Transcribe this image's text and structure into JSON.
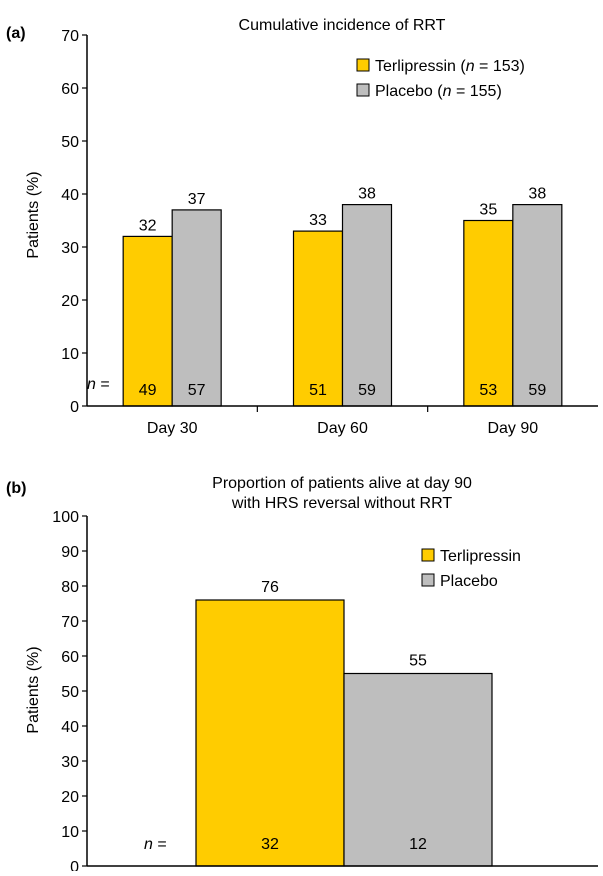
{
  "chart_data": [
    {
      "type": "bar",
      "panel_label": "(a)",
      "title": "Cumulative incidence of RRT",
      "ylabel": "Patients (%)",
      "ylim": [
        0,
        70
      ],
      "yticks": [
        0,
        10,
        20,
        30,
        40,
        50,
        60,
        70
      ],
      "categories": [
        "Day 30",
        "Day 60",
        "Day 90"
      ],
      "n_prefix": "n =",
      "legend_position": "top-right",
      "series": [
        {
          "name": "Terlipressin",
          "legend_suffix": "(n = 153)",
          "color": "#FFCC00",
          "values": [
            32,
            33,
            35
          ],
          "n": [
            "49",
            "51",
            "53"
          ]
        },
        {
          "name": "Placebo",
          "legend_suffix": "(n = 155)",
          "color": "#BEBEBE",
          "values": [
            37,
            38,
            38
          ],
          "n": [
            "57",
            "59",
            "59"
          ]
        }
      ]
    },
    {
      "type": "bar",
      "panel_label": "(b)",
      "title": "Proportion of patients alive at day 90",
      "title_line2": "with HRS reversal without RRT",
      "ylabel": "Patients (%)",
      "ylim": [
        0,
        100
      ],
      "yticks": [
        0,
        10,
        20,
        30,
        40,
        50,
        60,
        70,
        80,
        90,
        100
      ],
      "n_prefix": "n =",
      "legend_position": "top-right",
      "series": [
        {
          "name": "Terlipressin",
          "color": "#FFCC00",
          "values": [
            76
          ],
          "n": [
            "32"
          ]
        },
        {
          "name": "Placebo",
          "color": "#BEBEBE",
          "values": [
            55
          ],
          "n": [
            "12"
          ]
        }
      ]
    }
  ]
}
